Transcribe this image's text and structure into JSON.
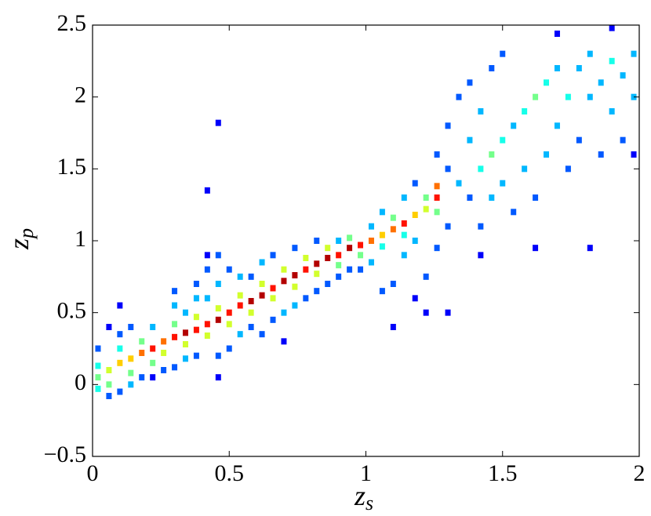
{
  "chart_data": {
    "type": "heatmap2d",
    "xlabel": "z",
    "xlabel_sub": "s",
    "ylabel": "z",
    "ylabel_sub": "p",
    "xlim": [
      0,
      2
    ],
    "xticks": [
      0,
      0.5,
      1,
      1.5,
      2
    ],
    "ylim": [
      -0.5,
      2.5
    ],
    "yticks": [
      {
        "value": -0.5,
        "label": "−0.5"
      },
      0,
      0.5,
      1,
      1.5,
      2,
      2.5
    ],
    "colormap": "jet",
    "cells": [
      [
        0.02,
        0.05,
        5
      ],
      [
        0.06,
        0.1,
        6
      ],
      [
        0.1,
        0.15,
        7
      ],
      [
        0.14,
        0.18,
        7
      ],
      [
        0.18,
        0.22,
        8
      ],
      [
        0.22,
        0.25,
        9
      ],
      [
        0.26,
        0.3,
        8
      ],
      [
        0.3,
        0.33,
        9
      ],
      [
        0.34,
        0.36,
        10
      ],
      [
        0.38,
        0.38,
        9
      ],
      [
        0.42,
        0.42,
        9
      ],
      [
        0.46,
        0.45,
        10
      ],
      [
        0.5,
        0.5,
        9
      ],
      [
        0.54,
        0.55,
        9
      ],
      [
        0.58,
        0.58,
        10
      ],
      [
        0.62,
        0.62,
        10
      ],
      [
        0.66,
        0.67,
        9
      ],
      [
        0.7,
        0.72,
        10
      ],
      [
        0.74,
        0.76,
        10
      ],
      [
        0.78,
        0.8,
        9
      ],
      [
        0.82,
        0.84,
        10
      ],
      [
        0.86,
        0.88,
        10
      ],
      [
        0.9,
        0.9,
        9
      ],
      [
        0.94,
        0.95,
        10
      ],
      [
        0.98,
        0.97,
        9
      ],
      [
        1.02,
        1.0,
        8
      ],
      [
        1.06,
        1.04,
        7
      ],
      [
        1.1,
        1.08,
        8
      ],
      [
        1.14,
        1.12,
        9
      ],
      [
        1.18,
        1.18,
        7
      ],
      [
        1.22,
        1.22,
        6
      ],
      [
        1.26,
        1.3,
        9
      ],
      [
        1.26,
        1.38,
        8
      ],
      [
        0.02,
        0.13,
        4
      ],
      [
        0.02,
        -0.03,
        4
      ],
      [
        0.06,
        0.0,
        5
      ],
      [
        0.1,
        0.25,
        4
      ],
      [
        0.14,
        0.08,
        5
      ],
      [
        0.18,
        0.3,
        5
      ],
      [
        0.22,
        0.15,
        5
      ],
      [
        0.26,
        0.22,
        6
      ],
      [
        0.3,
        0.42,
        5
      ],
      [
        0.34,
        0.28,
        6
      ],
      [
        0.38,
        0.47,
        6
      ],
      [
        0.42,
        0.34,
        6
      ],
      [
        0.46,
        0.53,
        6
      ],
      [
        0.5,
        0.42,
        6
      ],
      [
        0.54,
        0.62,
        6
      ],
      [
        0.58,
        0.5,
        6
      ],
      [
        0.62,
        0.7,
        6
      ],
      [
        0.66,
        0.6,
        6
      ],
      [
        0.7,
        0.8,
        6
      ],
      [
        0.74,
        0.68,
        6
      ],
      [
        0.78,
        0.88,
        6
      ],
      [
        0.82,
        0.77,
        6
      ],
      [
        0.86,
        0.95,
        6
      ],
      [
        0.9,
        0.83,
        5
      ],
      [
        0.94,
        1.02,
        5
      ],
      [
        0.98,
        0.9,
        5
      ],
      [
        1.06,
        0.96,
        4
      ],
      [
        1.1,
        1.16,
        5
      ],
      [
        1.14,
        1.04,
        4
      ],
      [
        1.22,
        1.3,
        5
      ],
      [
        1.26,
        1.2,
        5
      ],
      [
        0.02,
        0.25,
        2
      ],
      [
        0.06,
        0.4,
        1
      ],
      [
        0.06,
        -0.08,
        2
      ],
      [
        0.1,
        0.55,
        1
      ],
      [
        0.1,
        0.35,
        2
      ],
      [
        0.1,
        -0.05,
        2
      ],
      [
        0.14,
        0.4,
        2
      ],
      [
        0.14,
        0.0,
        3
      ],
      [
        0.18,
        0.05,
        2
      ],
      [
        0.22,
        0.4,
        3
      ],
      [
        0.22,
        0.05,
        1
      ],
      [
        0.26,
        0.1,
        2
      ],
      [
        0.3,
        0.65,
        2
      ],
      [
        0.3,
        0.55,
        3
      ],
      [
        0.3,
        0.12,
        2
      ],
      [
        0.34,
        0.5,
        3
      ],
      [
        0.34,
        0.18,
        3
      ],
      [
        0.38,
        0.7,
        2
      ],
      [
        0.38,
        0.6,
        3
      ],
      [
        0.38,
        0.2,
        2
      ],
      [
        0.42,
        0.9,
        1
      ],
      [
        0.42,
        0.8,
        2
      ],
      [
        0.42,
        0.6,
        3
      ],
      [
        0.42,
        1.35,
        1
      ],
      [
        0.46,
        1.82,
        1
      ],
      [
        0.46,
        0.9,
        2
      ],
      [
        0.46,
        0.7,
        3
      ],
      [
        0.46,
        0.2,
        2
      ],
      [
        0.46,
        0.05,
        1
      ],
      [
        0.5,
        0.8,
        2
      ],
      [
        0.5,
        0.25,
        2
      ],
      [
        0.54,
        0.75,
        3
      ],
      [
        0.54,
        0.35,
        3
      ],
      [
        0.58,
        0.4,
        2
      ],
      [
        0.58,
        0.75,
        2
      ],
      [
        0.62,
        0.35,
        2
      ],
      [
        0.62,
        0.85,
        3
      ],
      [
        0.66,
        0.45,
        2
      ],
      [
        0.66,
        0.9,
        2
      ],
      [
        0.7,
        0.5,
        3
      ],
      [
        0.7,
        0.3,
        1
      ],
      [
        0.74,
        0.55,
        3
      ],
      [
        0.74,
        0.95,
        2
      ],
      [
        0.78,
        0.6,
        2
      ],
      [
        0.82,
        0.65,
        2
      ],
      [
        0.82,
        1.0,
        2
      ],
      [
        0.86,
        0.7,
        2
      ],
      [
        0.9,
        0.75,
        2
      ],
      [
        0.9,
        1.0,
        3
      ],
      [
        0.94,
        0.8,
        2
      ],
      [
        0.98,
        0.8,
        2
      ],
      [
        1.02,
        0.85,
        3
      ],
      [
        1.02,
        1.1,
        3
      ],
      [
        1.06,
        0.65,
        2
      ],
      [
        1.06,
        1.2,
        3
      ],
      [
        1.1,
        0.4,
        1
      ],
      [
        1.1,
        0.7,
        2
      ],
      [
        1.14,
        0.9,
        3
      ],
      [
        1.14,
        1.3,
        3
      ],
      [
        1.18,
        0.6,
        1
      ],
      [
        1.18,
        1.0,
        3
      ],
      [
        1.18,
        1.4,
        2
      ],
      [
        1.22,
        0.75,
        2
      ],
      [
        1.22,
        0.5,
        1
      ],
      [
        1.26,
        0.95,
        2
      ],
      [
        1.3,
        0.5,
        1
      ],
      [
        1.3,
        1.1,
        2
      ],
      [
        1.3,
        1.5,
        2
      ],
      [
        1.26,
        1.6,
        2
      ],
      [
        1.3,
        1.8,
        2
      ],
      [
        1.34,
        1.4,
        3
      ],
      [
        1.34,
        2.0,
        2
      ],
      [
        1.38,
        1.3,
        2
      ],
      [
        1.38,
        1.7,
        3
      ],
      [
        1.38,
        2.1,
        2
      ],
      [
        1.42,
        1.5,
        4
      ],
      [
        1.42,
        1.9,
        3
      ],
      [
        1.42,
        1.1,
        2
      ],
      [
        1.42,
        0.9,
        1
      ],
      [
        1.46,
        1.6,
        5
      ],
      [
        1.46,
        2.2,
        2
      ],
      [
        1.46,
        1.3,
        3
      ],
      [
        1.5,
        1.7,
        4
      ],
      [
        1.5,
        1.4,
        3
      ],
      [
        1.5,
        2.3,
        2
      ],
      [
        1.54,
        1.8,
        3
      ],
      [
        1.54,
        1.2,
        2
      ],
      [
        1.58,
        1.9,
        4
      ],
      [
        1.58,
        1.5,
        3
      ],
      [
        1.62,
        2.0,
        5
      ],
      [
        1.62,
        1.3,
        2
      ],
      [
        1.62,
        0.95,
        1
      ],
      [
        1.66,
        2.1,
        4
      ],
      [
        1.66,
        1.6,
        3
      ],
      [
        1.7,
        2.2,
        3
      ],
      [
        1.7,
        1.8,
        3
      ],
      [
        1.7,
        2.44,
        1
      ],
      [
        1.74,
        2.0,
        4
      ],
      [
        1.74,
        1.5,
        2
      ],
      [
        1.78,
        2.2,
        3
      ],
      [
        1.78,
        1.7,
        2
      ],
      [
        1.82,
        2.3,
        3
      ],
      [
        1.82,
        2.0,
        3
      ],
      [
        1.82,
        0.95,
        1
      ],
      [
        1.86,
        2.1,
        3
      ],
      [
        1.86,
        1.6,
        2
      ],
      [
        1.9,
        2.25,
        4
      ],
      [
        1.9,
        1.9,
        3
      ],
      [
        1.9,
        2.48,
        1
      ],
      [
        1.94,
        2.15,
        3
      ],
      [
        1.94,
        1.7,
        2
      ],
      [
        1.98,
        2.3,
        3
      ],
      [
        1.98,
        2.0,
        3
      ],
      [
        1.98,
        1.6,
        1
      ]
    ]
  }
}
